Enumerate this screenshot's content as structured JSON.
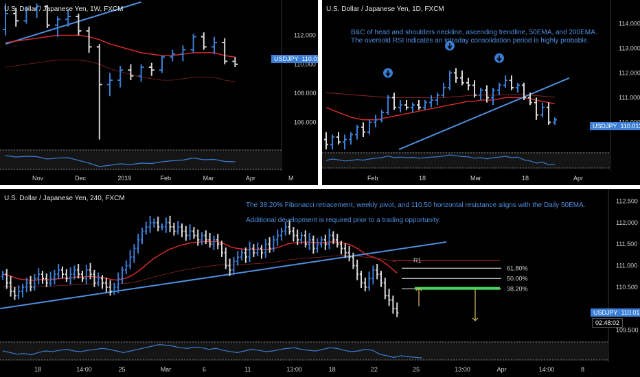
{
  "panels": {
    "weekly": {
      "title": "U.S. Dollar / Japanese Yen, 1W, FXCM"
    },
    "daily": {
      "title": "U.S. Dollar / Japanese Yen, 1D, FXCM",
      "note_line1": "B&C of head and shoulders neckline, ascending trendline, 50EMA, and 200EMA.",
      "note_line2": "The oversold RSI indicates an intraday consolidation period is highly probable."
    },
    "h4": {
      "title": "U.S. Dollar / Japanese Yen, 240, FXCM",
      "note_line1": "The 38.20% Fibonacci retracement, weekly pivot, and 110.50 horizontal resistance aligns with the Daily 50EMA.",
      "note_line2": "Additional development is required prior to a trading opportunity.",
      "pivot_label": "R1",
      "countdown": "02:48:02"
    }
  },
  "price_label": {
    "symbol": "USDJPY",
    "value": "110.013"
  },
  "colors": {
    "background": "#000000",
    "up_bar": "#3a7ed6",
    "down_bar": "#d8d8d8",
    "ema": "#d42b2b",
    "trendline": "#4f8fe0",
    "fib_line": "#ffffff",
    "zone": "#49d35a",
    "arrow": "#c9b458",
    "rsi": "#3a7ed6"
  },
  "chart_data": [
    {
      "type": "bar",
      "title": "U.S. Dollar / Japanese Yen, 1W, FXCM",
      "y_ticks": [
        "112.000",
        "110.000",
        "108.000",
        "106.000"
      ],
      "ylim": [
        104.5,
        114.2
      ],
      "x_ticks": [
        "Nov",
        "Dec",
        "2019",
        "Feb",
        "Mar",
        "Apr",
        "M"
      ],
      "last_price": 110.013,
      "series": [
        {
          "values": [
            [
              112.4,
              114.2,
              112.0,
              113.5
            ],
            [
              113.5,
              113.9,
              112.6,
              113.0
            ],
            [
              113.0,
              114.0,
              112.8,
              113.8
            ],
            [
              113.8,
              114.2,
              113.2,
              114.0
            ],
            [
              114.0,
              114.1,
              112.5,
              112.7
            ],
            [
              112.7,
              113.3,
              111.9,
              113.1
            ],
            [
              113.1,
              113.7,
              112.6,
              113.3
            ],
            [
              113.3,
              113.5,
              112.0,
              112.3
            ],
            [
              112.3,
              112.6,
              110.8,
              111.2
            ],
            [
              111.2,
              111.4,
              104.8,
              108.6
            ],
            [
              108.6,
              109.4,
              107.8,
              108.9
            ],
            [
              108.9,
              109.9,
              108.4,
              109.6
            ],
            [
              109.6,
              110.0,
              108.9,
              109.2
            ],
            [
              109.2,
              110.0,
              108.8,
              109.8
            ],
            [
              109.8,
              110.1,
              109.2,
              109.6
            ],
            [
              109.6,
              110.6,
              109.4,
              110.5
            ],
            [
              110.5,
              111.0,
              110.2,
              110.7
            ],
            [
              110.7,
              111.3,
              110.2,
              111.0
            ],
            [
              111.0,
              112.1,
              110.8,
              111.9
            ],
            [
              111.9,
              112.2,
              111.0,
              111.2
            ],
            [
              111.2,
              111.9,
              110.7,
              111.5
            ],
            [
              111.5,
              111.8,
              110.0,
              110.2
            ],
            [
              110.2,
              110.5,
              109.8,
              110.0
            ]
          ]
        }
      ],
      "ema": [
        111.5,
        111.6,
        111.7,
        111.8,
        111.9,
        112.0,
        112.0,
        112.0,
        111.9,
        111.7,
        111.4,
        111.2,
        111.0,
        110.8,
        110.7,
        110.6,
        110.6,
        110.7,
        110.8,
        110.8,
        110.8,
        110.6,
        110.5
      ],
      "rsi": [
        62,
        58,
        60,
        59,
        52,
        55,
        56,
        48,
        40,
        30,
        34,
        38,
        36,
        40,
        39,
        44,
        47,
        49,
        55,
        50,
        51,
        45,
        44
      ]
    },
    {
      "type": "bar",
      "title": "U.S. Dollar / Japanese Yen, 1D, FXCM",
      "y_ticks": [
        "114.000",
        "113.000",
        "112.000",
        "111.000",
        "110.000"
      ],
      "ylim": [
        108.9,
        114.4
      ],
      "x_ticks": [
        "Feb",
        "18",
        "Mar",
        "18",
        "Apr"
      ],
      "last_price": 110.013,
      "series": [
        {
          "values": [
            [
              109.3,
              109.6,
              108.9,
              109.1
            ],
            [
              109.1,
              109.5,
              108.9,
              109.4
            ],
            [
              109.4,
              109.6,
              109.1,
              109.2
            ],
            [
              109.2,
              109.5,
              108.9,
              109.3
            ],
            [
              109.3,
              109.6,
              109.1,
              109.5
            ],
            [
              109.5,
              109.9,
              109.3,
              109.8
            ],
            [
              109.8,
              110.0,
              109.4,
              109.6
            ],
            [
              109.6,
              110.1,
              109.5,
              110.0
            ],
            [
              110.0,
              110.3,
              109.8,
              110.1
            ],
            [
              110.1,
              110.5,
              110.0,
              110.4
            ],
            [
              110.4,
              111.1,
              110.3,
              111.0
            ],
            [
              111.0,
              111.2,
              110.5,
              110.6
            ],
            [
              110.6,
              110.9,
              110.4,
              110.7
            ],
            [
              110.7,
              110.9,
              110.5,
              110.6
            ],
            [
              110.6,
              110.8,
              110.4,
              110.7
            ],
            [
              110.7,
              110.9,
              110.5,
              110.6
            ],
            [
              110.6,
              110.9,
              110.5,
              110.8
            ],
            [
              110.8,
              111.1,
              110.6,
              110.9
            ],
            [
              110.9,
              111.2,
              110.7,
              111.1
            ],
            [
              111.1,
              111.6,
              111.0,
              111.4
            ],
            [
              111.4,
              112.1,
              111.3,
              112.0
            ],
            [
              112.0,
              112.2,
              111.6,
              111.8
            ],
            [
              111.8,
              112.1,
              111.5,
              111.6
            ],
            [
              111.6,
              111.8,
              111.3,
              111.5
            ],
            [
              111.5,
              111.7,
              111.0,
              111.1
            ],
            [
              111.1,
              111.4,
              110.9,
              111.3
            ],
            [
              111.3,
              111.5,
              110.8,
              111.0
            ],
            [
              111.0,
              111.4,
              110.7,
              111.3
            ],
            [
              111.3,
              111.6,
              111.1,
              111.5
            ],
            [
              111.5,
              111.9,
              111.4,
              111.7
            ],
            [
              111.7,
              111.9,
              111.3,
              111.4
            ],
            [
              111.4,
              111.6,
              111.2,
              111.5
            ],
            [
              111.5,
              111.6,
              110.9,
              111.0
            ],
            [
              111.0,
              111.2,
              110.7,
              110.8
            ],
            [
              110.8,
              111.0,
              110.1,
              110.3
            ],
            [
              110.3,
              110.8,
              110.2,
              110.6
            ],
            [
              110.6,
              110.8,
              109.9,
              110.0
            ],
            [
              110.0,
              110.2,
              109.9,
              110.1
            ]
          ]
        }
      ],
      "ema_50": [
        110.6,
        110.5,
        110.4,
        110.3,
        110.2,
        110.15,
        110.1,
        110.1,
        110.1,
        110.15,
        110.2,
        110.25,
        110.3,
        110.35,
        110.4,
        110.45,
        110.5,
        110.55,
        110.6,
        110.65,
        110.7,
        110.75,
        110.8,
        110.85,
        110.85,
        110.9,
        110.9,
        110.9,
        110.95,
        111.0,
        111.0,
        111.0,
        111.0,
        110.95,
        110.9,
        110.85,
        110.8,
        110.75
      ],
      "ema_200": [
        111.2,
        111.18,
        111.16,
        111.14,
        111.12,
        111.1,
        111.08,
        111.06,
        111.04,
        111.02,
        111.0,
        111.0,
        111.0,
        111.0,
        111.0,
        111.0,
        111.0,
        111.0,
        111.0,
        111.0,
        111.02,
        111.04,
        111.06,
        111.08,
        111.1,
        111.1,
        111.1,
        111.1,
        111.1,
        111.12,
        111.12,
        111.12,
        111.12,
        111.1,
        111.08,
        111.06,
        111.04,
        111.02
      ],
      "trendline": [
        [
          14,
          108.9
        ],
        [
          36,
          111.8
        ]
      ],
      "head_shoulder_markers": [
        [
          10,
          112.0
        ],
        [
          20,
          113.1
        ],
        [
          28,
          112.6
        ]
      ],
      "rsi": [
        50,
        55,
        52,
        48,
        50,
        53,
        51,
        55,
        58,
        60,
        66,
        60,
        62,
        60,
        61,
        58,
        60,
        62,
        63,
        66,
        70,
        67,
        64,
        63,
        58,
        60,
        56,
        60,
        62,
        65,
        60,
        62,
        52,
        48,
        40,
        44,
        34,
        36
      ]
    },
    {
      "type": "bar",
      "title": "U.S. Dollar / Japanese Yen, 240, FXCM",
      "y_ticks": [
        "112.500",
        "112.000",
        "111.500",
        "111.000",
        "110.500",
        "109.500"
      ],
      "ylim": [
        109.3,
        112.62
      ],
      "x_ticks": [
        "18",
        "14:00",
        "25",
        "Mar",
        "6",
        "11",
        "13:00",
        "18",
        "22",
        "25",
        "13:00",
        "Apr",
        "14:00",
        "8"
      ],
      "last_price": 110.013,
      "trendline": [
        [
          0,
          110.0
        ],
        [
          104,
          111.55
        ]
      ],
      "pivot": 111.12,
      "fib_levels": [
        {
          "label": "61.80%",
          "value": 110.94
        },
        {
          "label": "50.00%",
          "value": 110.7
        },
        {
          "label": "38.20%",
          "value": 110.46
        }
      ],
      "resistance_zone": 110.47,
      "rsi": [
        50,
        45,
        40,
        42,
        38,
        45,
        50,
        48,
        52,
        55,
        50,
        48,
        52,
        55,
        58,
        55,
        50,
        45,
        50,
        55,
        60,
        65,
        70,
        68,
        65,
        60,
        58,
        62,
        60,
        55,
        58,
        52,
        48,
        45,
        50,
        55,
        52,
        48,
        50,
        55,
        58,
        60,
        55,
        52,
        50,
        55,
        60,
        58,
        52,
        48,
        50,
        55,
        52,
        40,
        35,
        30,
        35,
        32,
        30,
        28
      ]
    }
  ]
}
